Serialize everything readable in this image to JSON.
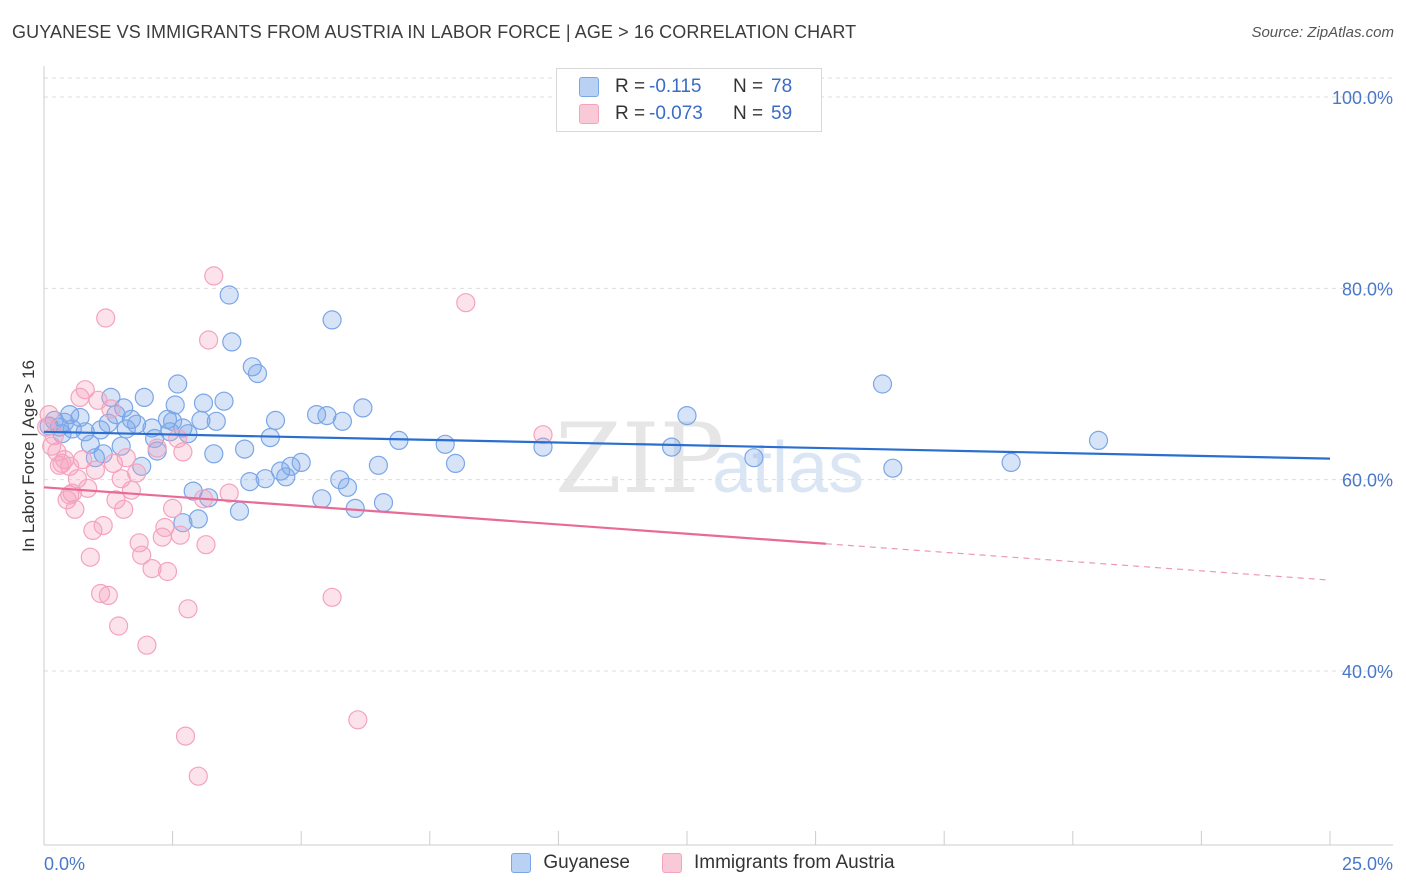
{
  "header": {
    "title": "GUYANESE VS IMMIGRANTS FROM AUSTRIA IN LABOR FORCE | AGE > 16 CORRELATION CHART",
    "source": "Source: ZipAtlas.com"
  },
  "watermark": {
    "zip": "ZIP",
    "atlas": "atlas"
  },
  "legend": {
    "rows": [
      {
        "r_label": "R =",
        "r_value": "-0.115",
        "n_label": "N =",
        "n_value": "78"
      },
      {
        "r_label": "R =",
        "r_value": "-0.073",
        "n_label": "N =",
        "n_value": "59"
      }
    ]
  },
  "chart_data": {
    "type": "scatter",
    "title": "GUYANESE VS IMMIGRANTS FROM AUSTRIA IN LABOR FORCE | AGE > 16 CORRELATION CHART",
    "xlabel": "",
    "ylabel": "In Labor Force | Age > 16",
    "xlim": [
      0,
      25
    ],
    "ylim": [
      20,
      104
    ],
    "x_tick_labels": {
      "min": "0.0%",
      "max": "25.0%"
    },
    "y_ticks": [
      {
        "value": 100,
        "label": "100.0%"
      },
      {
        "value": 80,
        "label": "80.0%"
      },
      {
        "value": 60,
        "label": "60.0%"
      },
      {
        "value": 40,
        "label": "40.0%"
      }
    ],
    "grid": true,
    "legend_position": "top-center",
    "series": [
      {
        "name": "Guyanese",
        "color": "#7aa6e8",
        "line_color": "#2a6fd0",
        "r": -0.115,
        "n": 78,
        "trend": {
          "x0": 0,
          "y0": 65.0,
          "x1": 25,
          "y1": 62.2
        },
        "points": [
          [
            0.2,
            66.2
          ],
          [
            0.3,
            65.5
          ],
          [
            0.4,
            66.0
          ],
          [
            0.5,
            66.8
          ],
          [
            0.55,
            65.3
          ],
          [
            0.7,
            66.5
          ],
          [
            0.8,
            65.0
          ],
          [
            0.9,
            63.7
          ],
          [
            1.0,
            62.3
          ],
          [
            1.1,
            65.2
          ],
          [
            1.15,
            62.7
          ],
          [
            1.3,
            68.6
          ],
          [
            1.4,
            66.8
          ],
          [
            1.5,
            63.5
          ],
          [
            1.55,
            67.5
          ],
          [
            1.6,
            65.3
          ],
          [
            1.7,
            66.3
          ],
          [
            1.8,
            65.8
          ],
          [
            1.9,
            61.4
          ],
          [
            1.95,
            68.6
          ],
          [
            2.1,
            65.4
          ],
          [
            2.15,
            64.3
          ],
          [
            2.2,
            63.0
          ],
          [
            2.4,
            66.3
          ],
          [
            2.5,
            66.1
          ],
          [
            2.55,
            67.8
          ],
          [
            2.6,
            70.0
          ],
          [
            2.7,
            65.4
          ],
          [
            2.7,
            55.5
          ],
          [
            2.8,
            64.8
          ],
          [
            2.9,
            58.8
          ],
          [
            3.0,
            55.9
          ],
          [
            3.05,
            66.2
          ],
          [
            3.1,
            68.0
          ],
          [
            3.2,
            58.1
          ],
          [
            3.3,
            62.7
          ],
          [
            3.35,
            66.1
          ],
          [
            3.5,
            68.2
          ],
          [
            3.6,
            79.3
          ],
          [
            3.65,
            74.4
          ],
          [
            3.8,
            56.7
          ],
          [
            3.9,
            63.2
          ],
          [
            4.0,
            59.8
          ],
          [
            4.05,
            71.8
          ],
          [
            4.15,
            71.1
          ],
          [
            4.3,
            60.1
          ],
          [
            4.4,
            64.4
          ],
          [
            4.5,
            66.2
          ],
          [
            4.6,
            60.9
          ],
          [
            4.7,
            60.3
          ],
          [
            4.8,
            61.4
          ],
          [
            5.0,
            61.8
          ],
          [
            5.3,
            66.8
          ],
          [
            5.4,
            58.0
          ],
          [
            5.5,
            66.7
          ],
          [
            5.6,
            76.7
          ],
          [
            5.75,
            60.0
          ],
          [
            5.8,
            66.1
          ],
          [
            5.9,
            59.2
          ],
          [
            6.05,
            57.0
          ],
          [
            6.2,
            67.5
          ],
          [
            6.5,
            61.5
          ],
          [
            6.6,
            57.6
          ],
          [
            6.9,
            64.1
          ],
          [
            7.8,
            63.7
          ],
          [
            8.0,
            61.7
          ],
          [
            9.7,
            63.4
          ],
          [
            12.2,
            63.4
          ],
          [
            12.5,
            66.7
          ],
          [
            13.8,
            62.3
          ],
          [
            16.3,
            70.0
          ],
          [
            16.5,
            61.2
          ],
          [
            18.8,
            61.8
          ],
          [
            20.5,
            64.1
          ],
          [
            0.1,
            65.6
          ],
          [
            0.35,
            64.8
          ],
          [
            1.25,
            65.9
          ],
          [
            2.45,
            65.0
          ]
        ]
      },
      {
        "name": "Immigrants from Austria",
        "color": "#f4a3bd",
        "line_color": "#e86b97",
        "r": -0.073,
        "n": 59,
        "trend": {
          "x0": 0,
          "y0": 59.2,
          "x1": 15.2,
          "y1": 53.3
        },
        "trend_dashed": {
          "x0": 15.2,
          "y0": 53.3,
          "x1": 25,
          "y1": 49.5
        },
        "points": [
          [
            0.15,
            63.5
          ],
          [
            0.2,
            64.6
          ],
          [
            0.25,
            62.9
          ],
          [
            0.3,
            61.5
          ],
          [
            0.35,
            61.7
          ],
          [
            0.4,
            62.1
          ],
          [
            0.45,
            57.9
          ],
          [
            0.5,
            58.4
          ],
          [
            0.55,
            58.6
          ],
          [
            0.6,
            56.9
          ],
          [
            0.65,
            60.1
          ],
          [
            0.7,
            68.6
          ],
          [
            0.75,
            62.1
          ],
          [
            0.8,
            69.4
          ],
          [
            0.85,
            59.1
          ],
          [
            0.9,
            51.9
          ],
          [
            0.95,
            54.7
          ],
          [
            1.0,
            61.0
          ],
          [
            1.05,
            68.3
          ],
          [
            1.1,
            48.1
          ],
          [
            1.15,
            55.2
          ],
          [
            1.2,
            76.9
          ],
          [
            1.25,
            47.9
          ],
          [
            1.3,
            67.4
          ],
          [
            1.35,
            61.7
          ],
          [
            1.4,
            57.9
          ],
          [
            1.45,
            44.7
          ],
          [
            1.5,
            60.1
          ],
          [
            1.55,
            56.9
          ],
          [
            1.6,
            62.3
          ],
          [
            1.7,
            58.9
          ],
          [
            1.8,
            60.7
          ],
          [
            1.85,
            53.4
          ],
          [
            1.9,
            52.1
          ],
          [
            2.0,
            42.7
          ],
          [
            2.1,
            50.7
          ],
          [
            2.2,
            63.3
          ],
          [
            2.3,
            54.0
          ],
          [
            2.35,
            55.0
          ],
          [
            2.4,
            50.4
          ],
          [
            2.5,
            57.0
          ],
          [
            2.6,
            64.3
          ],
          [
            2.65,
            54.2
          ],
          [
            2.7,
            62.9
          ],
          [
            2.75,
            33.2
          ],
          [
            2.8,
            46.5
          ],
          [
            3.0,
            29.0
          ],
          [
            3.1,
            58.0
          ],
          [
            3.15,
            53.2
          ],
          [
            3.2,
            74.6
          ],
          [
            3.3,
            81.3
          ],
          [
            3.6,
            58.6
          ],
          [
            5.6,
            47.7
          ],
          [
            6.1,
            34.9
          ],
          [
            9.7,
            64.7
          ],
          [
            8.2,
            78.5
          ],
          [
            0.05,
            65.5
          ],
          [
            0.1,
            66.8
          ],
          [
            0.5,
            61.4
          ]
        ]
      }
    ]
  }
}
